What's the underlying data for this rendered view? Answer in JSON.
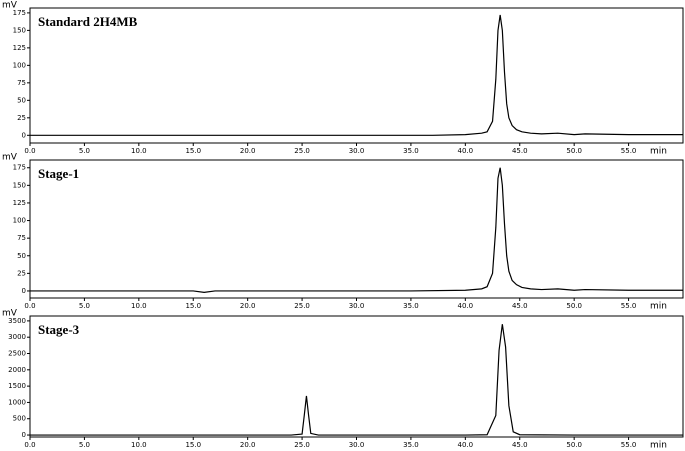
{
  "chart_data": [
    {
      "type": "line",
      "title": "Standard 2H4MB",
      "x_label": "min",
      "y_label": "mV",
      "xlim": [
        0,
        60
      ],
      "ylim": [
        -11,
        182
      ],
      "xticks": [
        {
          "value": 0,
          "label": "0.0"
        },
        {
          "value": 5,
          "label": "5.0"
        },
        {
          "value": 10,
          "label": "10.0"
        },
        {
          "value": 15,
          "label": "15.0"
        },
        {
          "value": 20,
          "label": "20.0"
        },
        {
          "value": 25,
          "label": "25.0"
        },
        {
          "value": 30,
          "label": "30.0"
        },
        {
          "value": 35,
          "label": "35.0"
        },
        {
          "value": 40,
          "label": "40.0"
        },
        {
          "value": 45,
          "label": "45.0"
        },
        {
          "value": 50,
          "label": "50.0"
        },
        {
          "value": 55,
          "label": "55.0"
        }
      ],
      "yticks": [
        0,
        25,
        50,
        75,
        100,
        125,
        150,
        175
      ],
      "x": [
        0,
        2,
        5,
        9,
        10,
        15,
        20,
        25,
        30,
        35,
        37,
        40,
        41.5,
        42,
        42.5,
        42.8,
        43,
        43.2,
        43.4,
        43.6,
        43.8,
        44,
        44.3,
        44.7,
        45.2,
        46,
        47,
        48.5,
        50,
        51,
        55,
        60
      ],
      "series": [
        {
          "color": "#000000",
          "values": [
            0,
            0,
            0,
            0,
            0,
            0,
            0,
            0,
            0,
            0,
            0,
            1,
            3,
            5,
            20,
            80,
            150,
            172,
            150,
            90,
            45,
            25,
            14,
            8,
            5,
            3,
            2,
            3,
            1,
            2,
            1,
            1
          ]
        }
      ]
    },
    {
      "type": "line",
      "title": "Stage-1",
      "x_label": "min",
      "y_label": "mV",
      "xlim": [
        0,
        60
      ],
      "ylim": [
        -10,
        186
      ],
      "xticks": [
        {
          "value": 0,
          "label": "0.0"
        },
        {
          "value": 5,
          "label": "5.0"
        },
        {
          "value": 10,
          "label": "10.0"
        },
        {
          "value": 15,
          "label": "15.0"
        },
        {
          "value": 20,
          "label": "20.0"
        },
        {
          "value": 25,
          "label": "25.0"
        },
        {
          "value": 30,
          "label": "30.0"
        },
        {
          "value": 35,
          "label": "35.0"
        },
        {
          "value": 40,
          "label": "40.0"
        },
        {
          "value": 45,
          "label": "45.0"
        },
        {
          "value": 50,
          "label": "50.0"
        },
        {
          "value": 55,
          "label": "55.0"
        }
      ],
      "yticks": [
        0,
        25,
        50,
        75,
        100,
        125,
        150,
        175
      ],
      "x": [
        0,
        2,
        5,
        9,
        10,
        15,
        16,
        17,
        20,
        25,
        30,
        35,
        40,
        41.5,
        42,
        42.5,
        42.8,
        43,
        43.2,
        43.4,
        43.6,
        43.8,
        44,
        44.3,
        44.7,
        45.2,
        46,
        47,
        48.5,
        50,
        51,
        55,
        60
      ],
      "series": [
        {
          "color": "#000000",
          "values": [
            0,
            0,
            0,
            0,
            0,
            0,
            -2,
            0,
            0,
            0,
            0,
            0,
            1,
            3,
            6,
            25,
            90,
            160,
            175,
            150,
            95,
            50,
            28,
            15,
            9,
            5,
            3,
            2,
            3,
            1,
            2,
            1,
            1
          ]
        }
      ]
    },
    {
      "type": "line",
      "title": "Stage-3",
      "x_label": "min",
      "y_label": "mV",
      "xlim": [
        0,
        60
      ],
      "ylim": [
        -60,
        3650
      ],
      "xticks": [
        {
          "value": 0,
          "label": "0.0"
        },
        {
          "value": 5,
          "label": "5.0"
        },
        {
          "value": 10,
          "label": "10.0"
        },
        {
          "value": 15,
          "label": "15.0"
        },
        {
          "value": 20,
          "label": "20.0"
        },
        {
          "value": 25,
          "label": "25.0"
        },
        {
          "value": 30,
          "label": "30.0"
        },
        {
          "value": 35,
          "label": "35.0"
        },
        {
          "value": 40,
          "label": "40.0"
        },
        {
          "value": 45,
          "label": "45.0"
        },
        {
          "value": 50,
          "label": "50.0"
        },
        {
          "value": 55,
          "label": "55.0"
        }
      ],
      "yticks": [
        0,
        500,
        1000,
        1500,
        2000,
        2500,
        3000,
        3500
      ],
      "x": [
        0,
        5,
        10,
        15,
        20,
        22,
        24,
        25,
        25.2,
        25.4,
        25.6,
        25.8,
        26.5,
        30,
        35,
        40,
        42,
        42.8,
        43.1,
        43.4,
        43.7,
        44,
        44.4,
        45,
        50,
        55,
        60
      ],
      "series": [
        {
          "color": "#000000",
          "values": [
            0,
            0,
            0,
            0,
            0,
            0,
            0,
            30,
            600,
            1200,
            600,
            50,
            0,
            0,
            0,
            0,
            10,
            600,
            2600,
            3400,
            2700,
            900,
            100,
            10,
            0,
            0,
            0
          ]
        }
      ]
    }
  ]
}
